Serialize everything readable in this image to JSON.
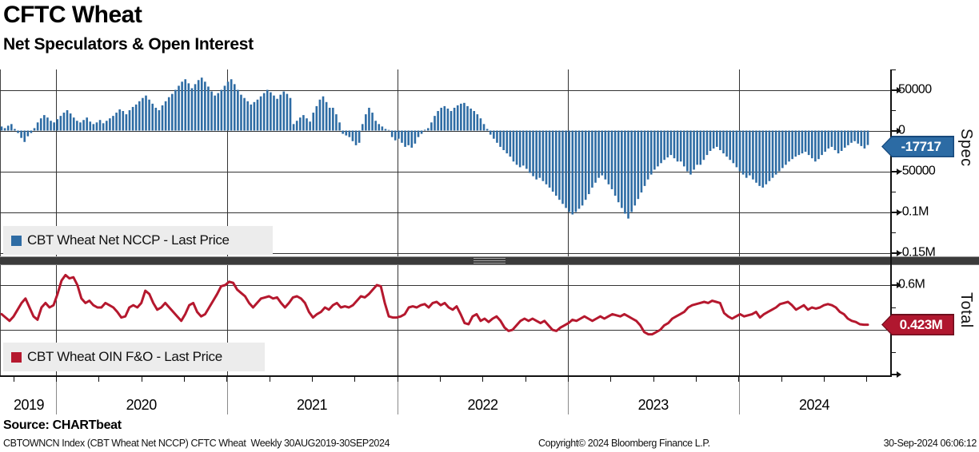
{
  "header": {
    "title": "CFTC Wheat",
    "subtitle": "Net Speculators & Open Interest"
  },
  "panels": {
    "spec": {
      "axis_label": "Spec",
      "legend_label": "CBT Wheat Net NCCP - Last Price",
      "badge_value": "-17717",
      "major_ticks": [
        {
          "value": 50000,
          "label": "50000"
        },
        {
          "value": 0,
          "label": "0"
        },
        {
          "value": -50000,
          "label": "-50000"
        },
        {
          "value": -100000,
          "label": "-0.1M"
        },
        {
          "value": -150000,
          "label": "-0.15M"
        }
      ],
      "minor_ticks": [
        75000,
        25000,
        -25000,
        -75000,
        -125000
      ]
    },
    "total": {
      "axis_label": "Total",
      "legend_label": "CBT Wheat OIN F&O - Last Price",
      "badge_value": "0.423M",
      "major_ticks": [
        {
          "value": 0.6,
          "label": "0.6M"
        },
        {
          "value": 0.4,
          "label": "0.4M"
        },
        {
          "value": 0.2,
          "label": ""
        }
      ],
      "minor_ticks": [
        0.5,
        0.3
      ]
    }
  },
  "x_axis": {
    "years": [
      "2019",
      "2020",
      "2021",
      "2022",
      "2023",
      "2024"
    ]
  },
  "footer": {
    "source": "Source: CHARTbeat",
    "info_left": "CBTOWNCN Index (CBT Wheat Net NCCP) CFTC Wheat  Weekly 30AUG2019-30SEP2024",
    "info_center": "Copyright© 2024 Bloomberg Finance L.P.",
    "info_right": "30-Sep-2024 06:06:12"
  },
  "colors": {
    "bar_blue": "#2e6ca4",
    "line_red": "#b5182e",
    "spec_badge_bg": "#2c6ba4",
    "spec_badge_border": "#17497c",
    "total_badge_bg": "#b0172f",
    "total_badge_border": "#6d0e1d",
    "legend_bg": "#ececec"
  },
  "chart_data": [
    {
      "type": "bar",
      "name": "CBT Wheat Net NCCP - Last Price",
      "axis": "Spec",
      "frequency": "Weekly",
      "x_range": [
        "30AUG2019",
        "30SEP2024"
      ],
      "ylim": [
        -165000,
        75000
      ],
      "gridlines": [
        50000,
        0,
        -50000,
        -100000,
        -150000
      ],
      "legend_position": "left-middle",
      "last_value": -17717,
      "values": [
        5000,
        3000,
        6000,
        8000,
        2000,
        -3000,
        -9000,
        -14000,
        -7000,
        -3000,
        3000,
        10000,
        15000,
        19000,
        16000,
        12000,
        10000,
        14000,
        18000,
        22000,
        25000,
        21000,
        16000,
        12000,
        10000,
        13000,
        16000,
        11000,
        8000,
        10000,
        13000,
        9000,
        12000,
        15000,
        18000,
        22000,
        26000,
        24000,
        20000,
        25000,
        29000,
        32000,
        36000,
        40000,
        43000,
        38000,
        33000,
        28000,
        25000,
        31000,
        36000,
        41000,
        45000,
        50000,
        55000,
        60000,
        63000,
        58000,
        52000,
        57000,
        62000,
        65000,
        60000,
        54000,
        48000,
        43000,
        46000,
        50000,
        55000,
        60000,
        63000,
        57000,
        50000,
        44000,
        40000,
        36000,
        32000,
        35000,
        38000,
        42000,
        46000,
        50000,
        47000,
        43000,
        39000,
        44000,
        48000,
        45000,
        40000,
        8000,
        12000,
        16000,
        19000,
        15000,
        11000,
        22000,
        30000,
        38000,
        42000,
        35000,
        28000,
        28000,
        20000,
        10000,
        -4000,
        -6000,
        -8000,
        -13000,
        -18000,
        -15000,
        8000,
        20000,
        28000,
        22000,
        12000,
        8000,
        5000,
        2000,
        0,
        -8000,
        -12000,
        -10000,
        -15000,
        -20000,
        -18000,
        -21000,
        -16000,
        -8000,
        -4000,
        1000,
        3000,
        10000,
        18000,
        24000,
        28000,
        30000,
        27000,
        24000,
        28000,
        31000,
        33000,
        34000,
        30000,
        27000,
        24000,
        20000,
        15000,
        8000,
        2000,
        -5000,
        -10000,
        -15000,
        -20000,
        -24000,
        -28000,
        -32000,
        -38000,
        -42000,
        -45000,
        -43000,
        -47000,
        -52000,
        -56000,
        -60000,
        -58000,
        -62000,
        -66000,
        -70000,
        -75000,
        -80000,
        -85000,
        -90000,
        -95000,
        -100000,
        -103000,
        -100000,
        -96000,
        -92000,
        -85000,
        -78000,
        -70000,
        -64000,
        -58000,
        -55000,
        -60000,
        -66000,
        -72000,
        -80000,
        -88000,
        -95000,
        -102000,
        -108000,
        -100000,
        -92000,
        -84000,
        -76000,
        -68000,
        -60000,
        -54000,
        -48000,
        -44000,
        -40000,
        -36000,
        -33000,
        -30000,
        -34000,
        -38000,
        -38000,
        -44000,
        -50000,
        -54000,
        -48000,
        -42000,
        -42000,
        -36000,
        -30000,
        -25000,
        -22000,
        -20000,
        -24000,
        -28000,
        -32000,
        -36000,
        -40000,
        -45000,
        -50000,
        -54000,
        -58000,
        -55000,
        -60000,
        -64000,
        -68000,
        -70000,
        -66000,
        -62000,
        -58000,
        -54000,
        -50000,
        -46000,
        -42000,
        -38000,
        -35000,
        -32000,
        -30000,
        -28000,
        -26000,
        -30000,
        -34000,
        -38000,
        -35000,
        -30000,
        -26000,
        -22000,
        -20000,
        -24000,
        -28000,
        -25000,
        -21000,
        -18000,
        -15000,
        -13000,
        -16000,
        -19000,
        -22000,
        -17717
      ]
    },
    {
      "type": "line",
      "name": "CBT Wheat OIN F&O - Last Price",
      "axis": "Total",
      "unit": "millions of contracts",
      "frequency": "Weekly",
      "x_range": [
        "30AUG2019",
        "30SEP2024"
      ],
      "ylim": [
        0.2,
        0.69
      ],
      "gridlines": [
        0.6,
        0.4
      ],
      "legend_position": "left-bottom",
      "last_value": 0.423,
      "values": [
        0.47,
        0.455,
        0.44,
        0.46,
        0.49,
        0.52,
        0.54,
        0.5,
        0.46,
        0.445,
        0.5,
        0.52,
        0.5,
        0.51,
        0.56,
        0.62,
        0.645,
        0.63,
        0.635,
        0.6,
        0.54,
        0.52,
        0.53,
        0.51,
        0.5,
        0.5,
        0.52,
        0.51,
        0.5,
        0.48,
        0.455,
        0.46,
        0.5,
        0.51,
        0.5,
        0.52,
        0.575,
        0.56,
        0.52,
        0.49,
        0.5,
        0.52,
        0.5,
        0.48,
        0.46,
        0.44,
        0.47,
        0.51,
        0.52,
        0.48,
        0.46,
        0.47,
        0.5,
        0.53,
        0.56,
        0.595,
        0.6,
        0.615,
        0.61,
        0.58,
        0.565,
        0.55,
        0.52,
        0.5,
        0.52,
        0.54,
        0.545,
        0.55,
        0.54,
        0.545,
        0.52,
        0.5,
        0.52,
        0.545,
        0.55,
        0.54,
        0.52,
        0.48,
        0.455,
        0.47,
        0.48,
        0.5,
        0.49,
        0.51,
        0.52,
        0.5,
        0.505,
        0.5,
        0.51,
        0.53,
        0.55,
        0.545,
        0.56,
        0.58,
        0.6,
        0.595,
        0.52,
        0.46,
        0.455,
        0.455,
        0.46,
        0.47,
        0.5,
        0.505,
        0.5,
        0.51,
        0.515,
        0.5,
        0.52,
        0.525,
        0.51,
        0.52,
        0.5,
        0.49,
        0.505,
        0.47,
        0.43,
        0.425,
        0.46,
        0.47,
        0.44,
        0.45,
        0.435,
        0.45,
        0.46,
        0.44,
        0.41,
        0.395,
        0.4,
        0.42,
        0.44,
        0.45,
        0.44,
        0.45,
        0.44,
        0.43,
        0.44,
        0.42,
        0.4,
        0.395,
        0.41,
        0.42,
        0.43,
        0.445,
        0.44,
        0.45,
        0.46,
        0.45,
        0.44,
        0.45,
        0.46,
        0.45,
        0.46,
        0.47,
        0.465,
        0.46,
        0.47,
        0.46,
        0.45,
        0.44,
        0.42,
        0.39,
        0.38,
        0.38,
        0.39,
        0.4,
        0.42,
        0.43,
        0.45,
        0.46,
        0.47,
        0.48,
        0.5,
        0.51,
        0.515,
        0.52,
        0.525,
        0.52,
        0.53,
        0.525,
        0.52,
        0.475,
        0.46,
        0.45,
        0.46,
        0.47,
        0.46,
        0.465,
        0.47,
        0.48,
        0.455,
        0.47,
        0.48,
        0.49,
        0.5,
        0.515,
        0.52,
        0.525,
        0.51,
        0.49,
        0.5,
        0.51,
        0.49,
        0.5,
        0.495,
        0.5,
        0.51,
        0.515,
        0.51,
        0.5,
        0.48,
        0.47,
        0.45,
        0.44,
        0.435,
        0.425,
        0.423,
        0.423
      ]
    }
  ]
}
